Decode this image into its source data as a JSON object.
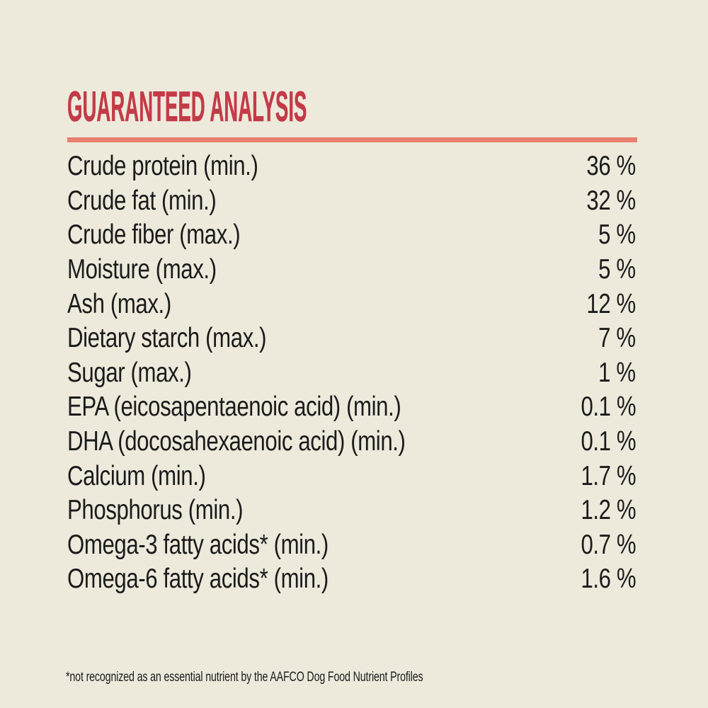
{
  "panel": {
    "title": "GUARANTEED ANALYSIS",
    "rows": [
      {
        "label": "Crude protein (min.)",
        "value": "36 %"
      },
      {
        "label": "Crude fat (min.)",
        "value": "32 %"
      },
      {
        "label": "Crude fiber (max.)",
        "value": "5 %"
      },
      {
        "label": "Moisture (max.)",
        "value": "5 %"
      },
      {
        "label": "Ash (max.)",
        "value": "12 %"
      },
      {
        "label": "Dietary starch (max.)",
        "value": "7 %"
      },
      {
        "label": "Sugar (max.)",
        "value": "1 %"
      },
      {
        "label": "EPA (eicosapentaenoic acid) (min.)",
        "value": "0.1 %"
      },
      {
        "label": "DHA (docosahexaenoic acid) (min.)",
        "value": "0.1 %"
      },
      {
        "label": "Calcium (min.)",
        "value": "1.7 %"
      },
      {
        "label": "Phosphorus (min.)",
        "value": "1.2 %"
      },
      {
        "label": "Omega-3 fatty acids* (min.)",
        "value": "0.7 %"
      },
      {
        "label": "Omega-6 fatty acids* (min.)",
        "value": "1.6 %"
      }
    ],
    "footnote": "*not recognized as an essential nutrient by the AAFCO Dog Food Nutrient Profiles",
    "colors": {
      "background": "#edeadc",
      "title": "#c43a47",
      "divider": "#e97f6d",
      "text": "#1b1b1b"
    }
  }
}
